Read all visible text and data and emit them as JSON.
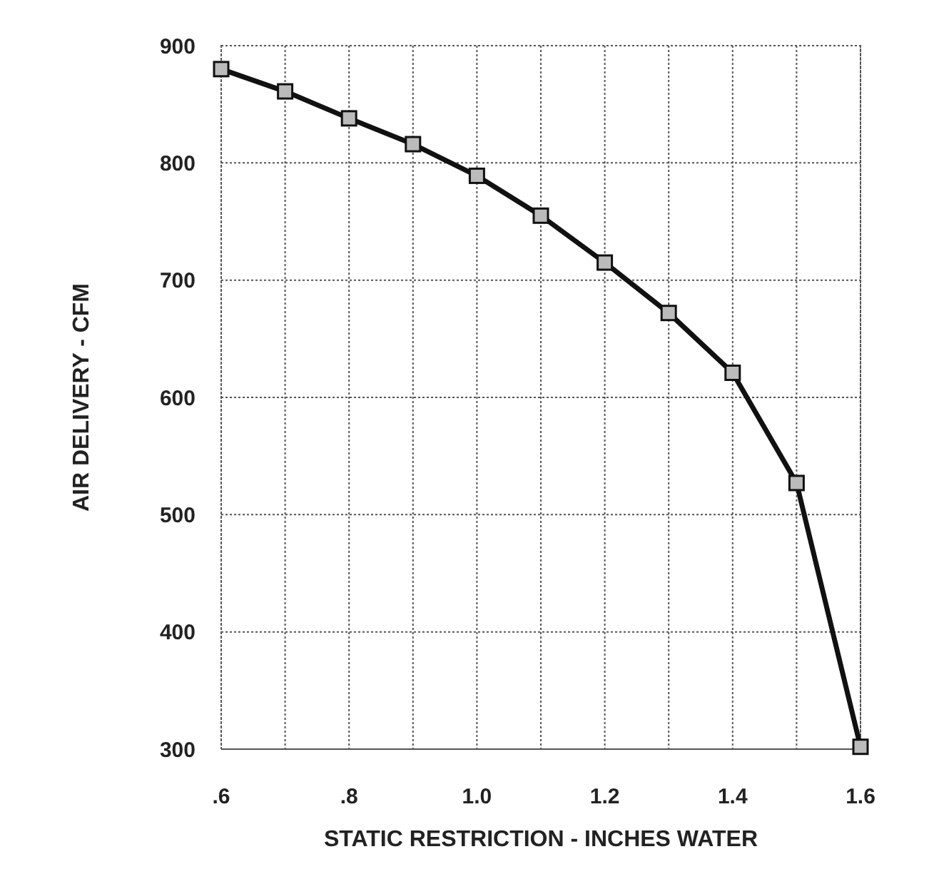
{
  "chart_data": {
    "type": "line",
    "xlabel": "STATIC RESTRICTION - INCHES WATER",
    "ylabel": "AIR DELIVERY - CFM",
    "x": [
      0.6,
      0.7,
      0.8,
      0.9,
      1.0,
      1.1,
      1.2,
      1.3,
      1.4,
      1.5,
      1.6
    ],
    "series": [
      {
        "color": "#111111",
        "values": [
          880,
          861,
          838,
          816,
          789,
          755,
          715,
          672,
          621,
          527,
          302
        ]
      }
    ],
    "xlim": [
      0.6,
      1.6
    ],
    "xticks": [
      {
        "value": 0.6,
        "label": ".6"
      },
      {
        "value": 0.7,
        "label": null
      },
      {
        "value": 0.8,
        "label": ".8"
      },
      {
        "value": 0.9,
        "label": null
      },
      {
        "value": 1.0,
        "label": "1.0"
      },
      {
        "value": 1.1,
        "label": null
      },
      {
        "value": 1.2,
        "label": "1.2"
      },
      {
        "value": 1.3,
        "label": null
      },
      {
        "value": 1.4,
        "label": "1.4"
      },
      {
        "value": 1.5,
        "label": null
      },
      {
        "value": 1.6,
        "label": "1.6"
      }
    ],
    "ylim": [
      300,
      900
    ],
    "yticks": [
      300,
      400,
      500,
      600,
      700,
      800,
      900
    ],
    "grid": true,
    "marker": "square",
    "line_style": "solid"
  }
}
